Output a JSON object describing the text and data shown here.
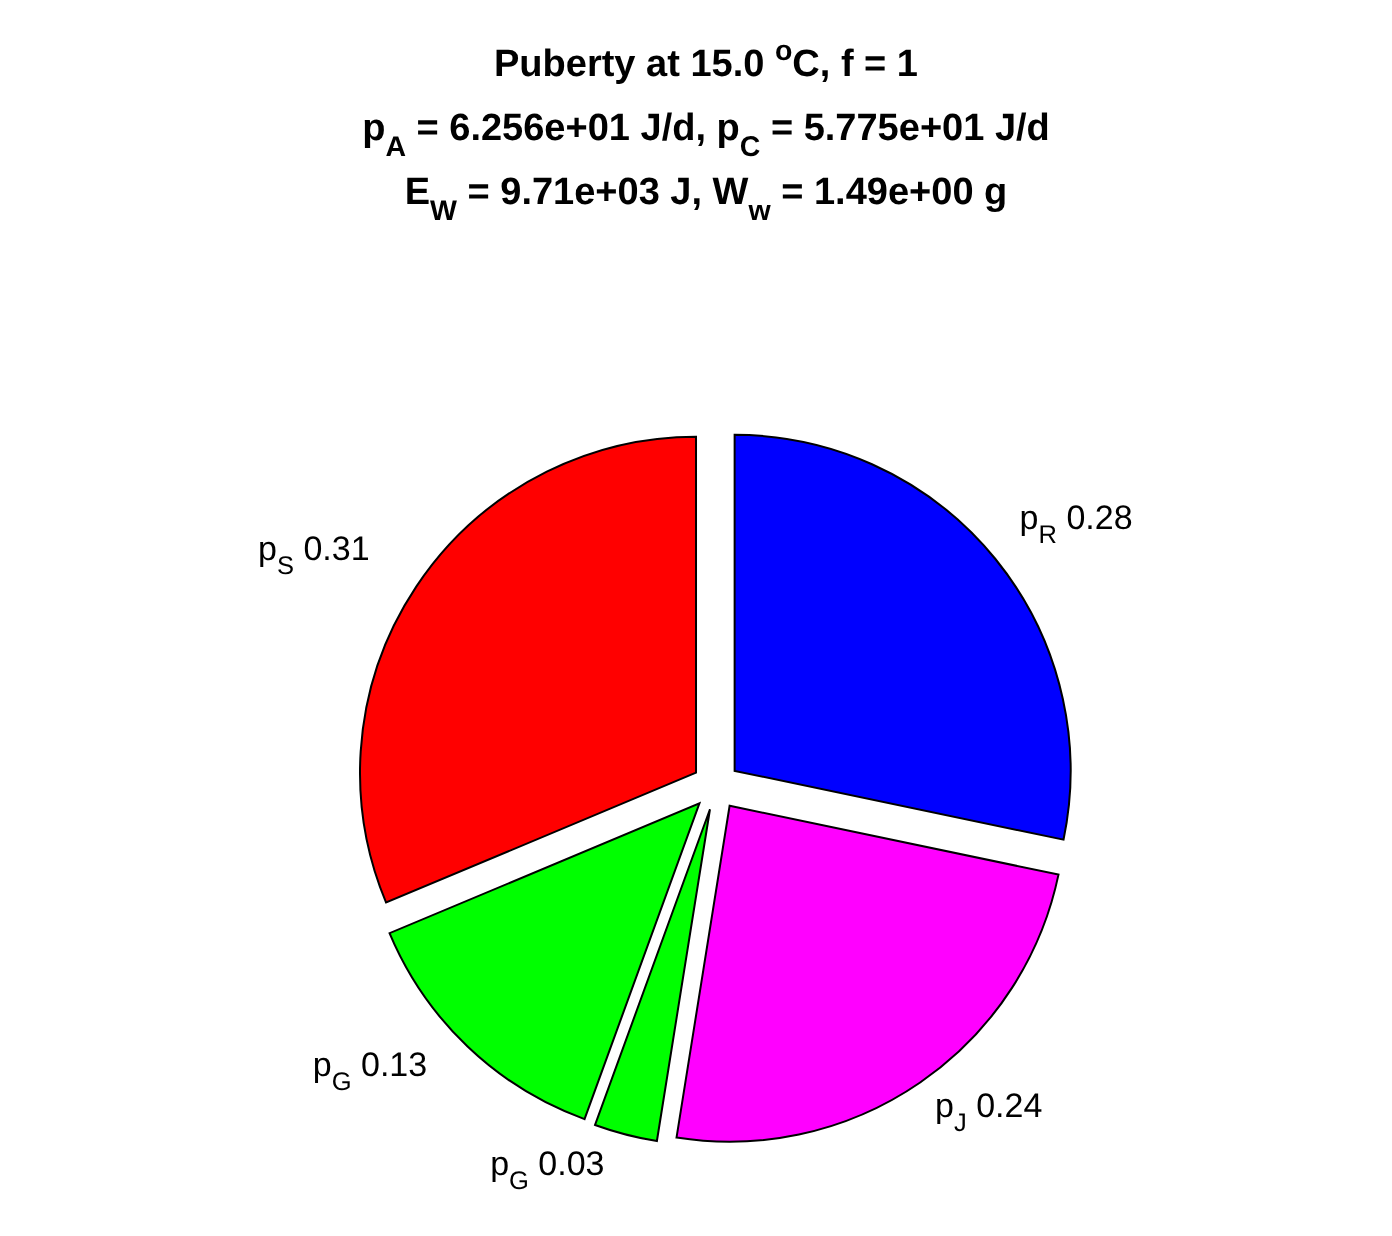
{
  "chart_data": {
    "type": "pie",
    "title": "Puberty at 15.0 $^{o}$C, f = 1",
    "subtitle": "p$_{A}$ = 6.256e+01 J/d,  p$_{C}$ = 5.775e+01 J/d\nE$_{W}$ = 9.71e+03 J, W$_{w}$ = 1.49e+00 g",
    "categories": [
      "p$_{R}$",
      "p$_{J}$",
      "p$_{G}$",
      "p$_{G}$",
      "p$_{S}$"
    ],
    "values": [
      0.28,
      0.24,
      0.03,
      0.13,
      0.31
    ],
    "colors": [
      "#0000ff",
      "#ff00ff",
      "#00ff00",
      "#00ff00",
      "#ff0000"
    ],
    "data_labels": true
  }
}
